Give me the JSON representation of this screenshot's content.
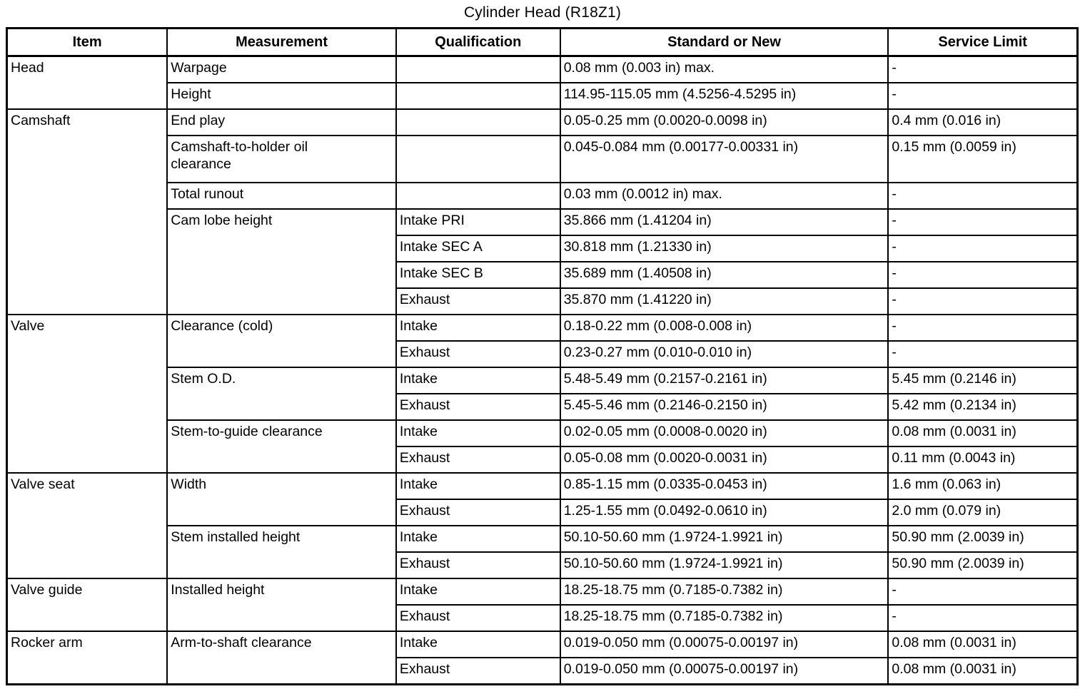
{
  "title": "Cylinder Head (R18Z1)",
  "table": {
    "headers": [
      "Item",
      "Measurement",
      "Qualification",
      "Standard or New",
      "Service Limit"
    ],
    "rows": [
      {
        "item": "Head",
        "measurement": "Warpage",
        "qualification": "",
        "standard": "0.08 mm (0.003 in) max.",
        "service": "-"
      },
      {
        "measurement": "Height",
        "qualification": "",
        "standard": "114.95-115.05 mm (4.5256-4.5295 in)",
        "service": "-"
      },
      {
        "item": "Camshaft",
        "measurement": "End play",
        "qualification": "",
        "standard": "0.05-0.25 mm (0.0020-0.0098 in)",
        "service": "0.4 mm (0.016 in)"
      },
      {
        "measurement": "Camshaft-to-holder oil clearance",
        "qualification": "",
        "standard": "0.045-0.084 mm (0.00177-0.00331 in)",
        "service": "0.15 mm (0.0059 in)"
      },
      {
        "measurement": "Total runout",
        "qualification": "",
        "standard": "0.03 mm (0.0012 in) max.",
        "service": "-"
      },
      {
        "measurement": "Cam lobe height",
        "qualification": "Intake PRI",
        "standard": "35.866 mm (1.41204 in)",
        "service": "-"
      },
      {
        "qualification": "Intake SEC A",
        "standard": "30.818 mm (1.21330 in)",
        "service": "-"
      },
      {
        "qualification": "Intake SEC B",
        "standard": "35.689 mm (1.40508 in)",
        "service": "-"
      },
      {
        "qualification": "Exhaust",
        "standard": "35.870 mm (1.41220 in)",
        "service": "-"
      },
      {
        "item": "Valve",
        "measurement": "Clearance (cold)",
        "qualification": "Intake",
        "standard": "0.18-0.22 mm (0.008-0.008 in)",
        "service": "-"
      },
      {
        "qualification": "Exhaust",
        "standard": "0.23-0.27 mm (0.010-0.010 in)",
        "service": "-"
      },
      {
        "measurement": "Stem O.D.",
        "qualification": "Intake",
        "standard": "5.48-5.49 mm (0.2157-0.2161 in)",
        "service": "5.45 mm (0.2146 in)"
      },
      {
        "qualification": "Exhaust",
        "standard": "5.45-5.46 mm (0.2146-0.2150 in)",
        "service": "5.42 mm (0.2134 in)"
      },
      {
        "measurement": "Stem-to-guide clearance",
        "qualification": "Intake",
        "standard": "0.02-0.05 mm (0.0008-0.0020 in)",
        "service": "0.08 mm (0.0031 in)"
      },
      {
        "qualification": "Exhaust",
        "standard": "0.05-0.08 mm (0.0020-0.0031 in)",
        "service": "0.11 mm (0.0043 in)"
      },
      {
        "item": "Valve seat",
        "measurement": "Width",
        "qualification": "Intake",
        "standard": "0.85-1.15 mm (0.0335-0.0453 in)",
        "service": "1.6 mm (0.063 in)"
      },
      {
        "qualification": "Exhaust",
        "standard": "1.25-1.55 mm (0.0492-0.0610 in)",
        "service": "2.0 mm (0.079 in)"
      },
      {
        "measurement": "Stem installed height",
        "qualification": "Intake",
        "standard": "50.10-50.60 mm (1.9724-1.9921 in)",
        "service": "50.90 mm (2.0039 in)"
      },
      {
        "qualification": "Exhaust",
        "standard": "50.10-50.60 mm (1.9724-1.9921 in)",
        "service": "50.90 mm (2.0039 in)"
      },
      {
        "item": "Valve guide",
        "measurement": "Installed height",
        "qualification": "Intake",
        "standard": "18.25-18.75 mm (0.7185-0.7382 in)",
        "service": "-"
      },
      {
        "qualification": "Exhaust",
        "standard": "18.25-18.75 mm (0.7185-0.7382 in)",
        "service": "-"
      },
      {
        "item": "Rocker arm",
        "measurement": "Arm-to-shaft clearance",
        "qualification": "Intake",
        "standard": "0.019-0.050 mm (0.00075-0.00197 in)",
        "service": "0.08 mm (0.0031 in)"
      },
      {
        "qualification": "Exhaust",
        "standard": "0.019-0.050 mm (0.00075-0.00197 in)",
        "service": "0.08 mm (0.0031 in)"
      }
    ]
  }
}
